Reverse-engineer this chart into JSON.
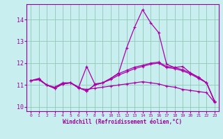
{
  "background_color": "#c8eef0",
  "grid_color": "#90c8b4",
  "line_color": "#aa00aa",
  "xlim": [
    -0.5,
    23.5
  ],
  "ylim": [
    9.8,
    14.7
  ],
  "yticks": [
    10,
    11,
    12,
    13,
    14
  ],
  "xticks": [
    0,
    1,
    2,
    3,
    4,
    5,
    6,
    7,
    8,
    9,
    10,
    11,
    12,
    13,
    14,
    15,
    16,
    17,
    18,
    19,
    20,
    21,
    22,
    23
  ],
  "xlabel": "Windchill (Refroidissement éolien,°C)",
  "curve1_x": [
    0,
    1,
    2,
    3,
    4,
    5,
    6,
    7,
    8,
    9,
    10,
    11,
    12,
    13,
    14,
    15,
    16,
    17,
    18,
    19,
    20,
    21,
    22,
    23
  ],
  "curve1_y": [
    11.2,
    11.3,
    11.0,
    10.9,
    11.1,
    11.1,
    10.85,
    10.8,
    10.85,
    10.9,
    10.95,
    11.0,
    11.05,
    11.1,
    11.15,
    11.1,
    11.05,
    10.95,
    10.9,
    10.8,
    10.75,
    10.7,
    10.65,
    10.2
  ],
  "curve2_x": [
    0,
    1,
    2,
    3,
    4,
    5,
    6,
    7,
    8,
    9,
    10,
    11,
    12,
    13,
    14,
    15,
    16,
    17,
    18,
    19,
    20,
    21,
    22,
    23
  ],
  "curve2_y": [
    11.2,
    11.25,
    11.0,
    10.85,
    11.05,
    11.1,
    10.9,
    11.85,
    11.05,
    11.1,
    11.3,
    11.55,
    12.7,
    13.65,
    14.45,
    13.85,
    13.4,
    11.95,
    11.8,
    11.85,
    11.55,
    11.35,
    11.1,
    10.25
  ],
  "curve3_x": [
    0,
    1,
    2,
    3,
    4,
    5,
    6,
    7,
    8,
    9,
    10,
    11,
    12,
    13,
    14,
    15,
    16,
    17,
    18,
    19,
    20,
    21,
    22,
    23
  ],
  "curve3_y": [
    11.2,
    11.25,
    11.0,
    10.85,
    11.05,
    11.1,
    10.88,
    10.72,
    11.0,
    11.1,
    11.25,
    11.45,
    11.6,
    11.75,
    11.85,
    11.95,
    12.0,
    11.8,
    11.75,
    11.65,
    11.5,
    11.3,
    11.1,
    10.25
  ],
  "curve4_x": [
    0,
    1,
    2,
    3,
    4,
    5,
    6,
    7,
    8,
    9,
    10,
    11,
    12,
    13,
    14,
    15,
    16,
    17,
    18,
    19,
    20,
    21,
    22,
    23
  ],
  "curve4_y": [
    11.2,
    11.25,
    11.0,
    10.85,
    11.05,
    11.1,
    10.88,
    10.72,
    11.0,
    11.1,
    11.3,
    11.52,
    11.67,
    11.82,
    11.9,
    12.0,
    12.05,
    11.85,
    11.8,
    11.7,
    11.55,
    11.35,
    11.1,
    10.25
  ]
}
